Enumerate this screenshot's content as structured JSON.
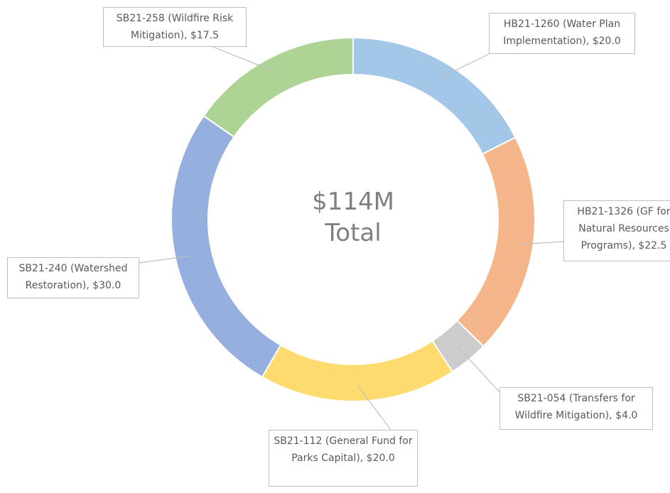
{
  "chart_data": {
    "type": "donut",
    "values": [
      20.0,
      22.5,
      4.0,
      20.0,
      30.0,
      17.5
    ],
    "value_labels": [
      "HB21-1260 (Water Plan Implementation), $20.0",
      "HB21-1326 (GF for Natural Resources Programs), $22.5",
      "SB21-054 (Transfers for Wildfire Mitigation), $4.0",
      "SB21-112 (General Fund for Parks Capital), $20.0",
      "SB21-240 (Watershed Restoration), $30.0",
      "SB21-258 (Wildfire Risk Mitigation), $17.5"
    ],
    "colors": [
      "#9dc3e6",
      "#f4b183",
      "#c9c9c9",
      "#ffd966",
      "#8faadc",
      "#a9d18e"
    ],
    "center_label": "$114M Total"
  }
}
